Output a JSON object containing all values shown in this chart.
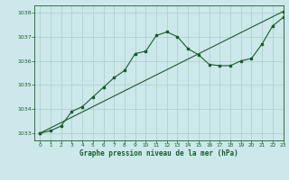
{
  "title": "Graphe pression niveau de la mer (hPa)",
  "background_color": "#cce8ea",
  "grid_color": "#aacccc",
  "line_color": "#1a5c2a",
  "xlim": [
    -0.5,
    23
  ],
  "ylim": [
    1032.7,
    1038.3
  ],
  "yticks": [
    1033,
    1034,
    1035,
    1036,
    1037,
    1038
  ],
  "xticks": [
    0,
    1,
    2,
    3,
    4,
    5,
    6,
    7,
    8,
    9,
    10,
    11,
    12,
    13,
    14,
    15,
    16,
    17,
    18,
    19,
    20,
    21,
    22,
    23
  ],
  "series1_x": [
    0,
    1,
    2,
    3,
    4,
    5,
    6,
    7,
    8,
    9,
    10,
    11,
    12,
    13,
    14,
    15,
    16,
    17,
    18,
    19,
    20,
    21,
    22,
    23
  ],
  "series1_y": [
    1033.0,
    1033.1,
    1033.3,
    1033.9,
    1034.1,
    1034.5,
    1034.9,
    1035.3,
    1035.6,
    1036.3,
    1036.4,
    1037.05,
    1037.2,
    1037.0,
    1036.5,
    1036.25,
    1035.85,
    1035.8,
    1035.8,
    1036.0,
    1036.1,
    1036.7,
    1037.45,
    1037.8
  ],
  "series2_x": [
    0,
    23
  ],
  "series2_y": [
    1033.0,
    1038.05
  ]
}
